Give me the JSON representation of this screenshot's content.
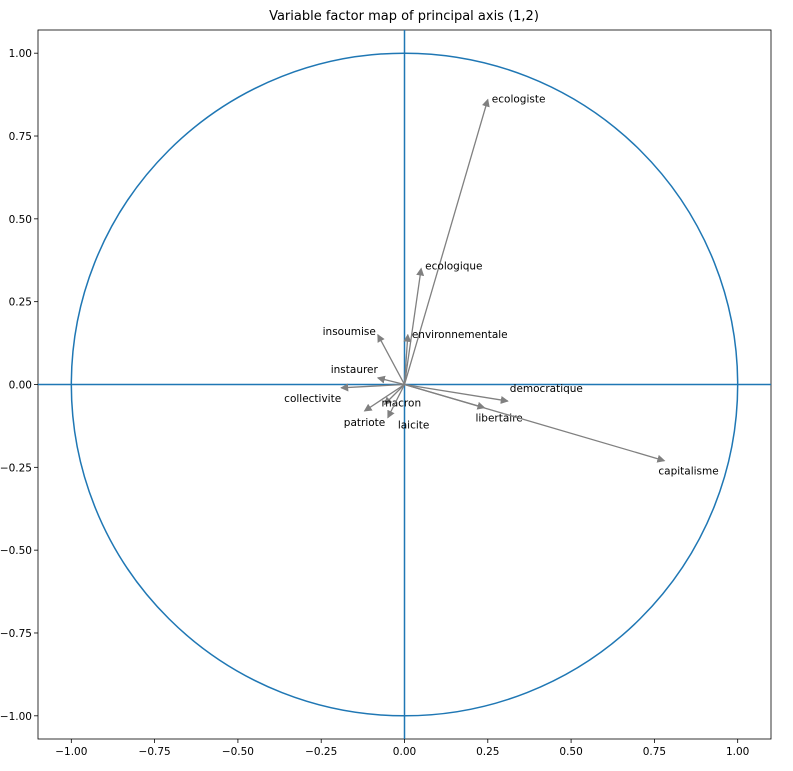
{
  "chart_data": {
    "type": "scatter",
    "subtype": "variable-factor-map",
    "title": "Variable factor map of principal axis (1,2)",
    "xlabel": "",
    "ylabel": "",
    "xlim": [
      -1.1,
      1.1
    ],
    "ylim": [
      -1.07,
      1.07
    ],
    "xticks": [
      -1.0,
      -0.75,
      -0.5,
      -0.25,
      0.0,
      0.25,
      0.5,
      0.75,
      1.0
    ],
    "xtick_labels": [
      "−1.00",
      "−0.75",
      "−0.50",
      "−0.25",
      "0.00",
      "0.25",
      "0.50",
      "0.75",
      "1.00"
    ],
    "yticks": [
      1.0,
      0.75,
      0.5,
      0.25,
      0.0,
      -0.25,
      -0.5,
      -0.75,
      -1.0
    ],
    "ytick_labels": [
      "1.00",
      "0.75",
      "0.50",
      "0.25",
      "0.00",
      "−0.25",
      "−0.50",
      "−0.75",
      "−1.00"
    ],
    "grid": false,
    "unit_circle": true,
    "axis_lines": true,
    "colors": {
      "circle": "#1f77b4",
      "arrows": "#808080",
      "text": "#000000"
    },
    "variables": [
      {
        "name": "ecologiste",
        "x": 0.25,
        "y": 0.86
      },
      {
        "name": "ecologique",
        "x": 0.05,
        "y": 0.35
      },
      {
        "name": "environnementale",
        "x": 0.01,
        "y": 0.15
      },
      {
        "name": "insoumise",
        "x": -0.08,
        "y": 0.15
      },
      {
        "name": "instaurer",
        "x": -0.08,
        "y": 0.02
      },
      {
        "name": "collectivite",
        "x": -0.19,
        "y": -0.01
      },
      {
        "name": "macron",
        "x": -0.06,
        "y": -0.06
      },
      {
        "name": "patriote",
        "x": -0.12,
        "y": -0.08
      },
      {
        "name": "laicite",
        "x": -0.05,
        "y": -0.1
      },
      {
        "name": "democratique",
        "x": 0.31,
        "y": -0.05
      },
      {
        "name": "libertaire",
        "x": 0.24,
        "y": -0.07
      },
      {
        "name": "capitalisme",
        "x": 0.78,
        "y": -0.23
      }
    ]
  }
}
